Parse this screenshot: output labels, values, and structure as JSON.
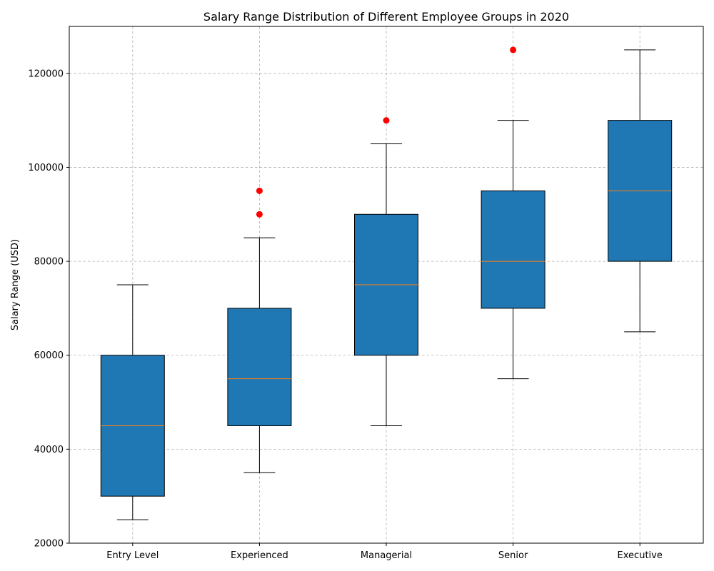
{
  "chart_data": {
    "type": "box",
    "title": "Salary Range Distribution of Different Employee Groups in 2020",
    "xlabel": "",
    "ylabel": "Salary Range (USD)",
    "ylim": [
      20000,
      130000
    ],
    "yticks": [
      "20000",
      "40000",
      "60000",
      "80000",
      "100000",
      "120000"
    ],
    "grid": true,
    "categories": [
      "Entry Level",
      "Experienced",
      "Managerial",
      "Senior",
      "Executive"
    ],
    "boxes": [
      {
        "min": 25000,
        "q1": 30000,
        "median": 45000,
        "q3": 60000,
        "max": 75000,
        "outliers": []
      },
      {
        "min": 35000,
        "q1": 45000,
        "median": 55000,
        "q3": 70000,
        "max": 85000,
        "outliers": [
          90000,
          95000
        ]
      },
      {
        "min": 45000,
        "q1": 60000,
        "median": 75000,
        "q3": 90000,
        "max": 105000,
        "outliers": [
          110000
        ]
      },
      {
        "min": 55000,
        "q1": 70000,
        "median": 80000,
        "q3": 95000,
        "max": 110000,
        "outliers": [
          125000
        ]
      },
      {
        "min": 65000,
        "q1": 80000,
        "median": 95000,
        "q3": 110000,
        "max": 125000,
        "outliers": []
      }
    ],
    "colors": {
      "box_fill": "#1f77b4",
      "median": "#ff7f0e",
      "outlier": "#ff0000",
      "grid": "#b0b0b0"
    }
  }
}
